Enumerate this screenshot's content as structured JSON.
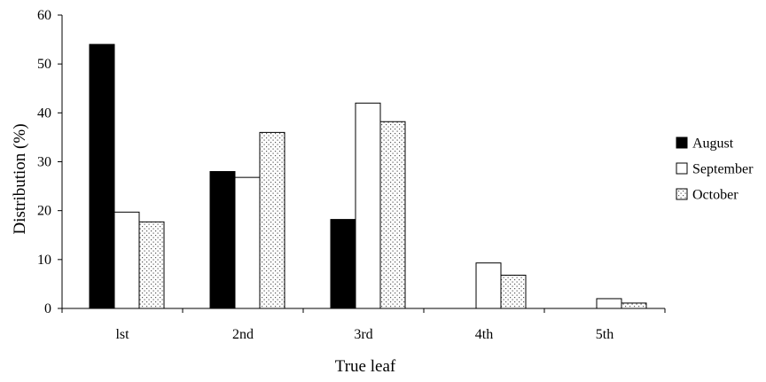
{
  "chart_data": {
    "type": "bar",
    "title": "",
    "xlabel": "True leaf",
    "ylabel": "Distribution (%)",
    "ylim": [
      0,
      60
    ],
    "yticks": [
      0,
      10,
      20,
      30,
      40,
      50,
      60
    ],
    "categories": [
      "lst",
      "2nd",
      "3rd",
      "4th",
      "5th"
    ],
    "series": [
      {
        "name": "August",
        "values": [
          54,
          28,
          18.2,
          0,
          0
        ],
        "fill": "solid-black"
      },
      {
        "name": "September",
        "values": [
          19.7,
          26.8,
          42,
          9.3,
          2
        ],
        "fill": "white"
      },
      {
        "name": "October",
        "values": [
          17.7,
          36,
          38.2,
          6.8,
          1.1
        ],
        "fill": "dotted"
      }
    ],
    "legend": {
      "position": "right"
    },
    "grid": false,
    "colors": {
      "axis": "#000000",
      "bar_solid": "#000000",
      "bar_open": "#ffffff"
    }
  }
}
